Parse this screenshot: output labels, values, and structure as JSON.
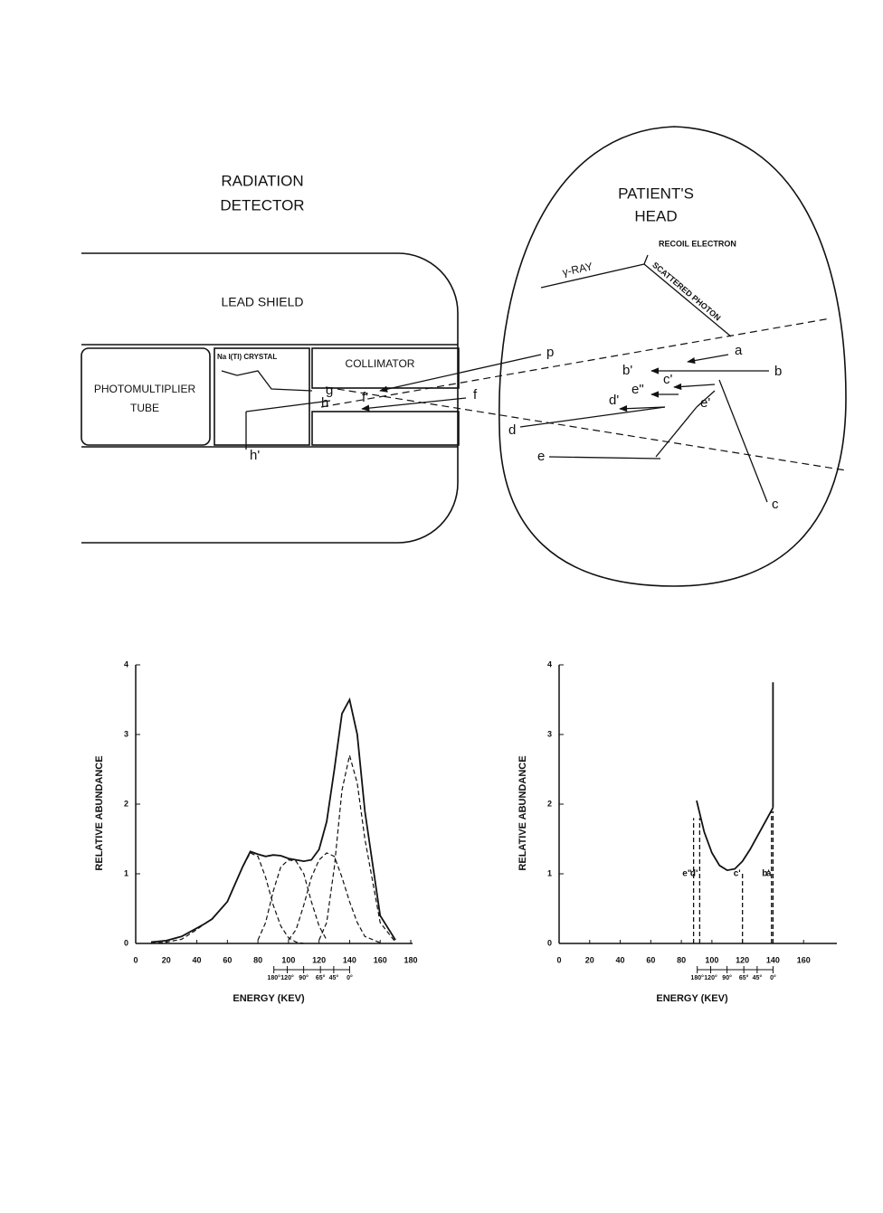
{
  "diagram": {
    "detector_title": [
      "RADIATION",
      "DETECTOR"
    ],
    "head_title": [
      "PATIENT'S",
      "HEAD"
    ],
    "lead_shield": "LEAD SHIELD",
    "crystal": "Na I(Tl) CRYSTAL",
    "collimator": "COLLIMATOR",
    "photomultiplier": [
      "PHOTOMULTIPLIER",
      "TUBE"
    ],
    "gamma_ray": "γ-RAY",
    "recoil_electron": "RECOIL ELECTRON",
    "scattered_photon": "SCATTERED PHOTON",
    "ray_labels": [
      "p",
      "a",
      "b",
      "b'",
      "c'",
      "c",
      "e\"",
      "e'",
      "d'",
      "d",
      "e",
      "f",
      "f'",
      "g",
      "h",
      "h'"
    ]
  },
  "chart_data": [
    {
      "type": "line",
      "xlabel": "ENERGY (KEV)",
      "ylabel": "RELATIVE ABUNDANCE",
      "xlim": [
        0,
        180
      ],
      "ylim": [
        0,
        4
      ],
      "xticks": [
        0,
        20,
        40,
        60,
        80,
        100,
        120,
        140,
        160,
        180
      ],
      "yticks": [
        0,
        1,
        2,
        3,
        4
      ],
      "angle_ticks": [
        {
          "value": 90.4,
          "label": "180°"
        },
        {
          "value": 99.2,
          "label": "120°"
        },
        {
          "value": 109.9,
          "label": "90°"
        },
        {
          "value": 120.9,
          "label": "65°"
        },
        {
          "value": 129.6,
          "label": "45°"
        },
        {
          "value": 140,
          "label": "0°"
        }
      ],
      "x": [
        10,
        20,
        30,
        40,
        45,
        50,
        60,
        70,
        75,
        80,
        85,
        90,
        95,
        100,
        105,
        110,
        115,
        120,
        125,
        130,
        135,
        140,
        145,
        150,
        160,
        170
      ],
      "series": [
        {
          "color": "#111",
          "dashed": false,
          "values": [
            0.02,
            0.04,
            0.1,
            0.22,
            0.28,
            0.35,
            0.6,
            1.1,
            1.32,
            1.28,
            1.25,
            1.27,
            1.26,
            1.22,
            1.2,
            1.18,
            1.2,
            1.35,
            1.75,
            2.5,
            3.3,
            3.5,
            3.0,
            1.9,
            0.4,
            0.05
          ]
        },
        {
          "color": "#111",
          "dashed": true,
          "values": [
            0,
            0.02,
            0.06,
            0.2,
            0.28,
            0.35,
            0.6,
            1.1,
            1.3,
            1.25,
            0.95,
            0.55,
            0.25,
            0.08,
            0.02,
            0,
            null,
            null,
            null,
            null,
            null,
            null,
            null,
            null,
            null,
            null
          ]
        },
        {
          "color": "#111",
          "dashed": true,
          "values": [
            null,
            null,
            null,
            null,
            null,
            null,
            null,
            null,
            null,
            0.05,
            0.3,
            0.75,
            1.1,
            1.2,
            1.18,
            1.0,
            0.6,
            0.25,
            0.05,
            null,
            null,
            null,
            null,
            null,
            null,
            null
          ]
        },
        {
          "color": "#111",
          "dashed": true,
          "values": [
            null,
            null,
            null,
            null,
            null,
            null,
            null,
            null,
            null,
            null,
            null,
            null,
            null,
            0.05,
            0.2,
            0.55,
            0.95,
            1.2,
            1.3,
            1.25,
            0.95,
            0.6,
            0.3,
            0.1,
            0.01,
            null
          ]
        },
        {
          "color": "#111",
          "dashed": true,
          "values": [
            null,
            null,
            null,
            null,
            null,
            null,
            null,
            null,
            null,
            null,
            null,
            null,
            null,
            null,
            null,
            null,
            null,
            0.05,
            0.3,
            1.1,
            2.2,
            2.7,
            2.3,
            1.5,
            0.3,
            0.02
          ]
        }
      ]
    },
    {
      "type": "line",
      "xlabel": "ENERGY (KEV)",
      "ylabel": "RELATIVE ABUNDANCE",
      "xlim": [
        0,
        180
      ],
      "ylim": [
        0,
        4
      ],
      "xticks": [
        0,
        20,
        40,
        60,
        80,
        100,
        120,
        140,
        160
      ],
      "yticks": [
        0,
        1,
        2,
        3,
        4
      ],
      "angle_ticks": [
        {
          "value": 90.4,
          "label": "180°"
        },
        {
          "value": 99.2,
          "label": "120°"
        },
        {
          "value": 109.9,
          "label": "90°"
        },
        {
          "value": 120.9,
          "label": "65°"
        },
        {
          "value": 129.6,
          "label": "45°"
        },
        {
          "value": 140,
          "label": "0°"
        }
      ],
      "series": [
        {
          "color": "#111",
          "dashed": false,
          "x": [
            90,
            95,
            100,
            105,
            110,
            115,
            120,
            125,
            130,
            135,
            140
          ],
          "values": [
            2.05,
            1.6,
            1.3,
            1.12,
            1.05,
            1.07,
            1.18,
            1.35,
            1.55,
            1.75,
            1.95
          ]
        },
        {
          "color": "#111",
          "dashed": false,
          "x": [
            140,
            140
          ],
          "values": [
            1.95,
            3.75
          ]
        }
      ],
      "markers": {
        "x": [
          88,
          92,
          120,
          139,
          140
        ],
        "values": [
          1.8,
          1.8,
          1.0,
          1.9,
          1.9
        ],
        "labels": [
          "e\"",
          "d'",
          "c'",
          "b'",
          "a"
        ]
      }
    }
  ]
}
